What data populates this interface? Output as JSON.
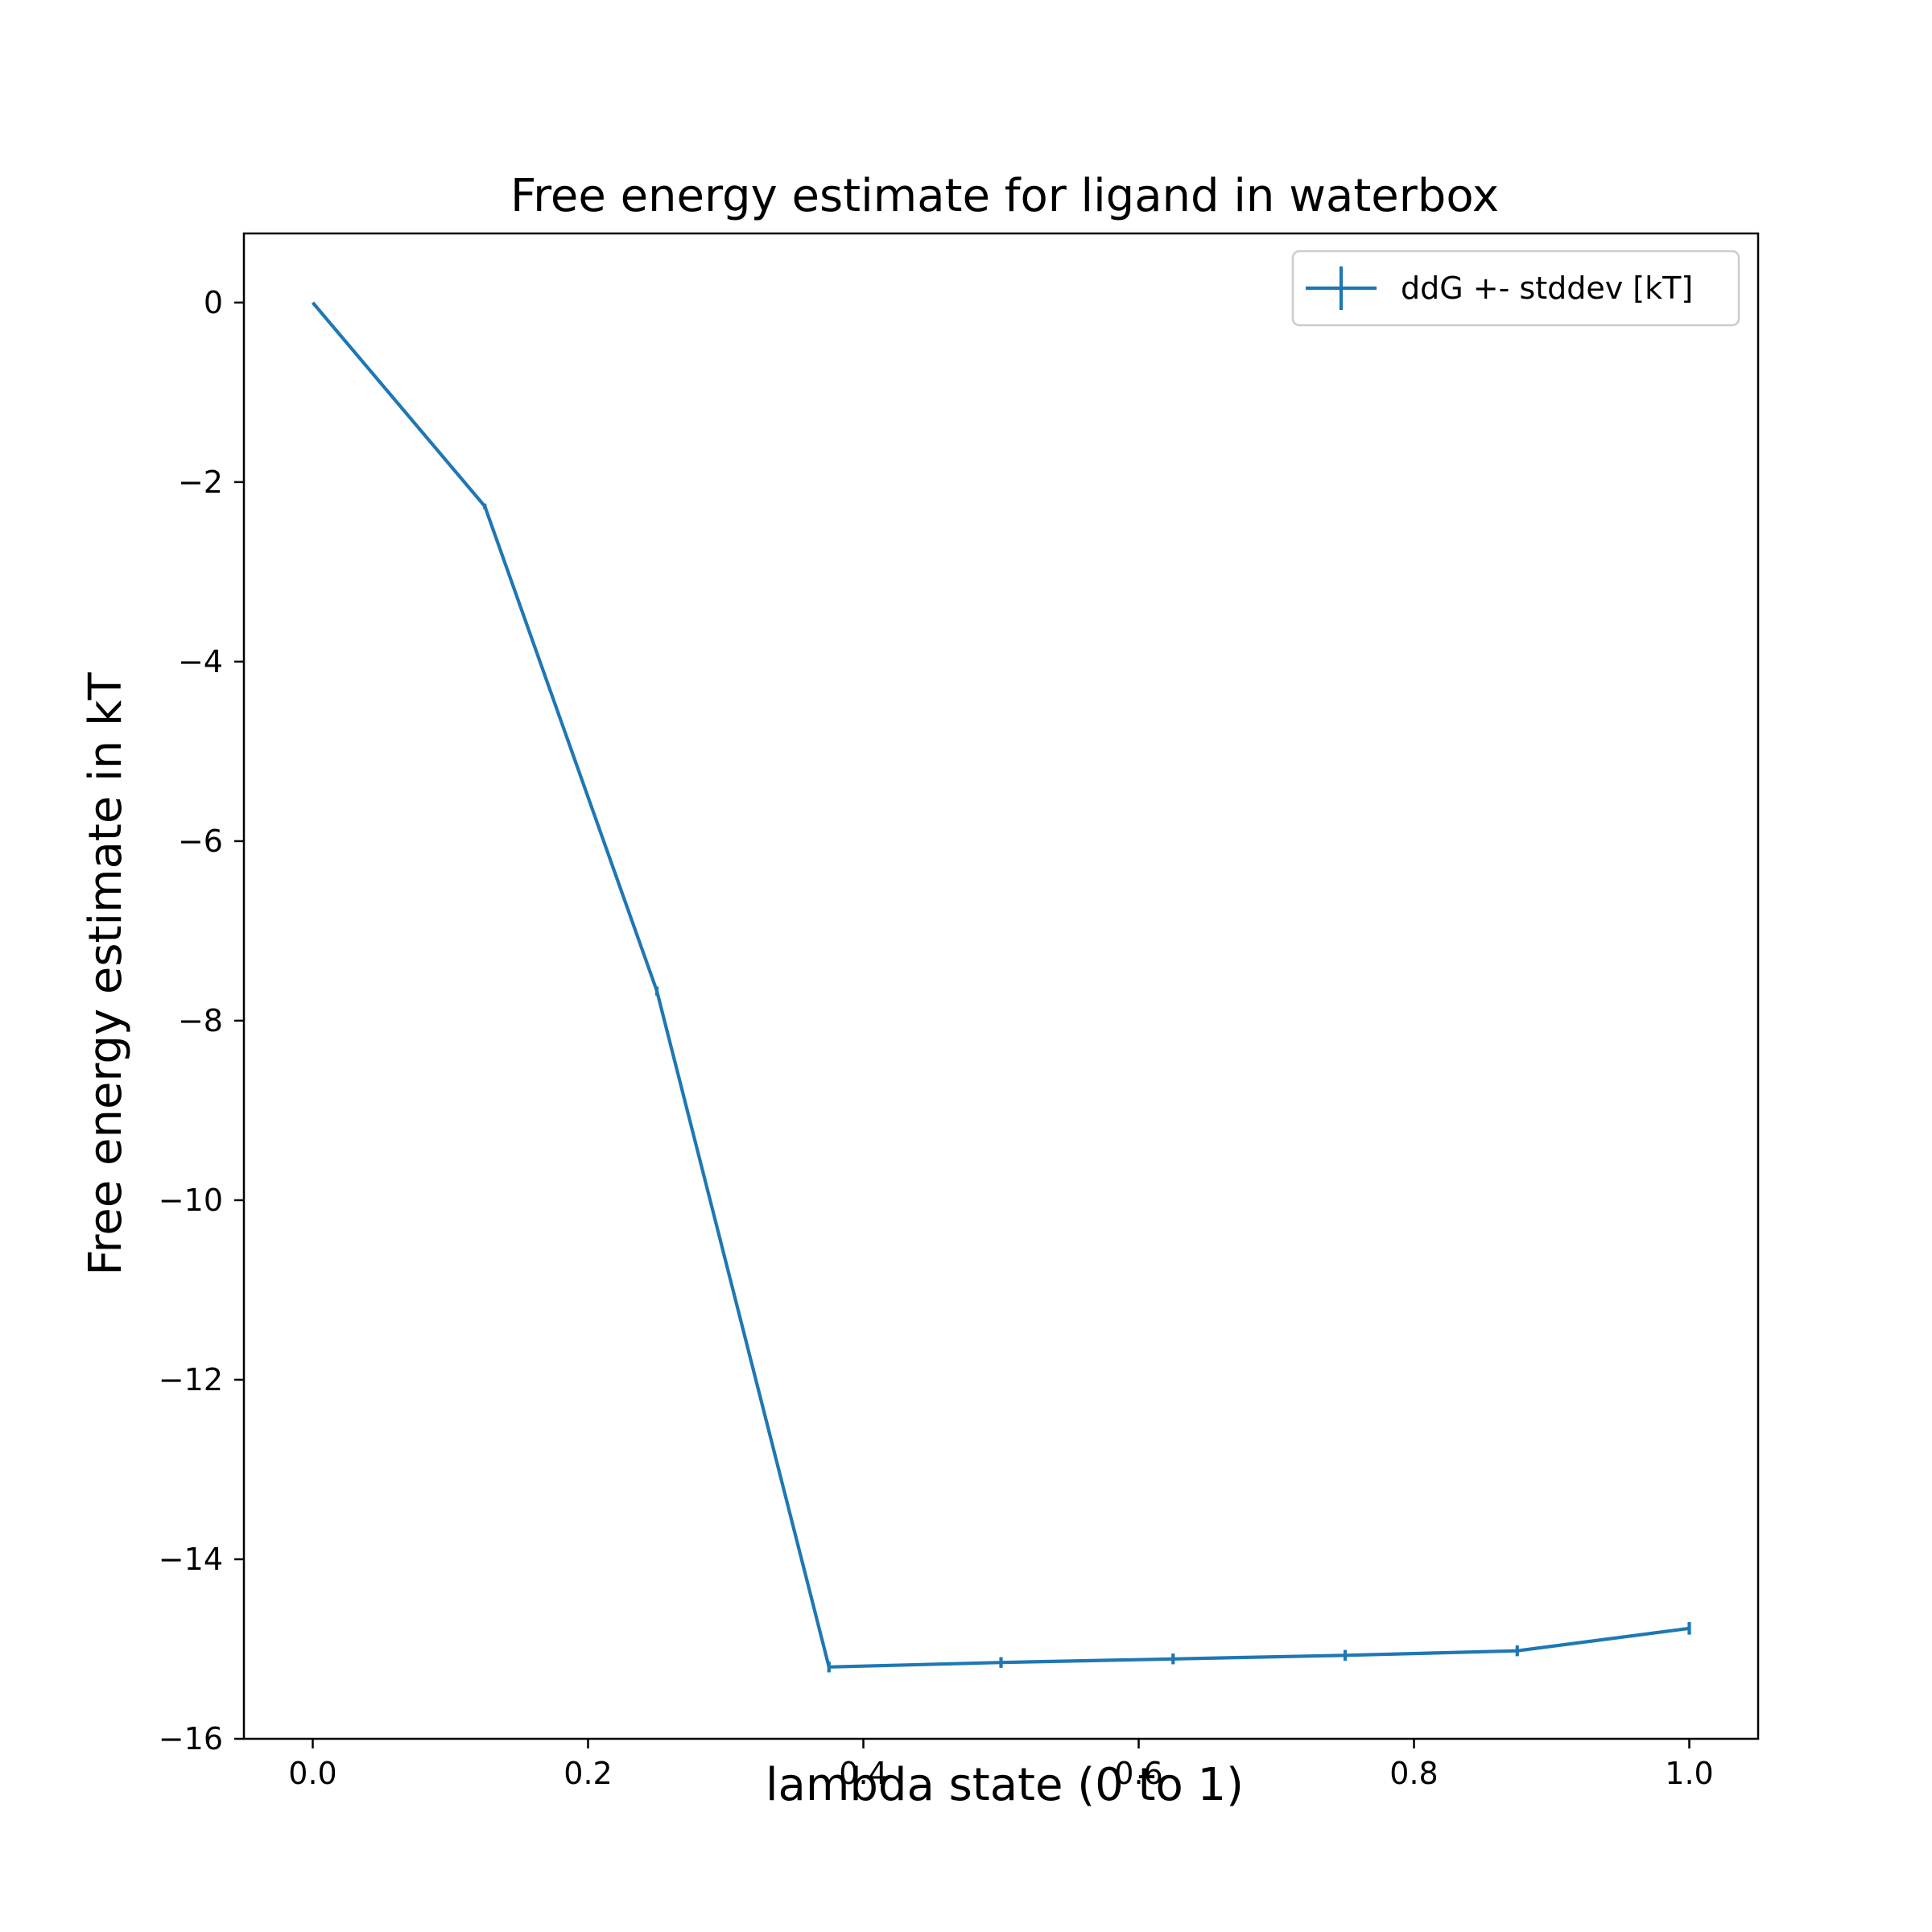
{
  "chart_data": {
    "type": "line",
    "title": "Free energy estimate for ligand in waterbox",
    "xlabel": "lambda state (0 to 1)",
    "ylabel": "Free energy estimate in kT",
    "xlim": [
      -0.05,
      1.05
    ],
    "ylim": [
      -16.0,
      0.77
    ],
    "xticks": [
      0.0,
      0.2,
      0.4,
      0.6,
      0.8,
      1.0
    ],
    "xtick_labels": [
      "0.0",
      "0.2",
      "0.4",
      "0.6",
      "0.8",
      "1.0"
    ],
    "yticks": [
      0,
      -2,
      -4,
      -6,
      -8,
      -10,
      -12,
      -14,
      -16
    ],
    "ytick_labels": [
      "0",
      "−2",
      "−4",
      "−6",
      "−8",
      "−10",
      "−12",
      "−14",
      "−16"
    ],
    "grid": false,
    "legend_position": "top-right",
    "series": [
      {
        "name": "ddG +- stddev [kT]",
        "color": "#1f77b4",
        "x": [
          0.0,
          0.125,
          0.25,
          0.375,
          0.5,
          0.625,
          0.75,
          0.875,
          1.0
        ],
        "y": [
          0.0,
          -2.27,
          -7.67,
          -15.2,
          -15.15,
          -15.11,
          -15.07,
          -15.02,
          -14.77
        ],
        "err": [
          0.0,
          0.03,
          0.05,
          0.06,
          0.06,
          0.06,
          0.06,
          0.06,
          0.07
        ]
      }
    ]
  }
}
